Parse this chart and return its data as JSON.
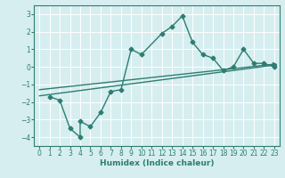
{
  "xlabel": "Humidex (Indice chaleur)",
  "bg_color": "#d6eef0",
  "line_color": "#2e7d72",
  "grid_color": "#ffffff",
  "ylim": [
    -4.5,
    3.5
  ],
  "xlim": [
    -0.5,
    23.5
  ],
  "yticks": [
    -4,
    -3,
    -2,
    -1,
    0,
    1,
    2,
    3
  ],
  "xticks": [
    0,
    1,
    2,
    3,
    4,
    5,
    6,
    7,
    8,
    9,
    10,
    11,
    12,
    13,
    14,
    15,
    16,
    17,
    18,
    19,
    20,
    21,
    22,
    23
  ],
  "line1_x": [
    1,
    2,
    3,
    4,
    4,
    5,
    6,
    7,
    8,
    9,
    10,
    12,
    13,
    14,
    15,
    16,
    17,
    18,
    19,
    20,
    21,
    22,
    23
  ],
  "line1_y": [
    -1.7,
    -1.9,
    -3.5,
    -4.0,
    -3.1,
    -3.4,
    -2.6,
    -1.4,
    -1.3,
    1.0,
    0.7,
    1.9,
    2.3,
    2.9,
    1.4,
    0.7,
    0.5,
    -0.2,
    0.0,
    1.0,
    0.2,
    0.2,
    0.0
  ],
  "line2_x": [
    0,
    23
  ],
  "line2_y": [
    -1.65,
    0.1
  ],
  "line3_x": [
    0,
    23
  ],
  "line3_y": [
    -1.3,
    0.15
  ]
}
